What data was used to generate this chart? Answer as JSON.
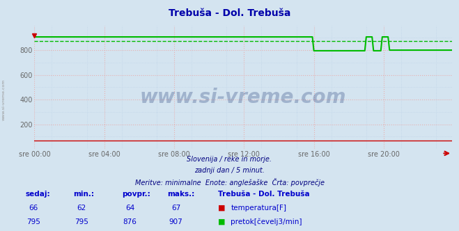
{
  "title": "Trebuša - Dol. Trebuša",
  "bg_color": "#d4e4f0",
  "plot_bg_color": "#d4e4f0",
  "grid_color_major": "#e8b0b0",
  "grid_color_minor": "#c0d4e8",
  "ylim": [
    0,
    1000
  ],
  "yticks": [
    200,
    400,
    600,
    800
  ],
  "xlim": [
    0,
    287
  ],
  "xtick_labels": [
    "sre 00:00",
    "sre 04:00",
    "sre 08:00",
    "sre 12:00",
    "sre 16:00",
    "sre 20:00"
  ],
  "xtick_positions": [
    0,
    48,
    96,
    144,
    192,
    240
  ],
  "temp_color": "#cc0000",
  "flow_color": "#00bb00",
  "flow_avg": 876,
  "subtitle1": "Slovenija / reke in morje.",
  "subtitle2": "zadnji dan / 5 minut.",
  "subtitle3": "Meritve: minimalne  Enote: anglešaške  Črta: povprečje",
  "table_headers": [
    "sedaj:",
    "min.:",
    "povpr.:",
    "maks.:",
    "Trebuša - Dol. Trebuša"
  ],
  "temp_row": [
    "66",
    "62",
    "64",
    "67"
  ],
  "flow_row": [
    "795",
    "795",
    "876",
    "907"
  ],
  "temp_label": "temperatura[F]",
  "flow_label": "pretok[čevelj3/min]",
  "watermark": "www.si-vreme.com",
  "left_label": "www.si-vreme.com",
  "title_color": "#0000aa",
  "subtitle_color": "#000080",
  "table_header_color": "#0000cc",
  "table_value_color": "#0000cc"
}
